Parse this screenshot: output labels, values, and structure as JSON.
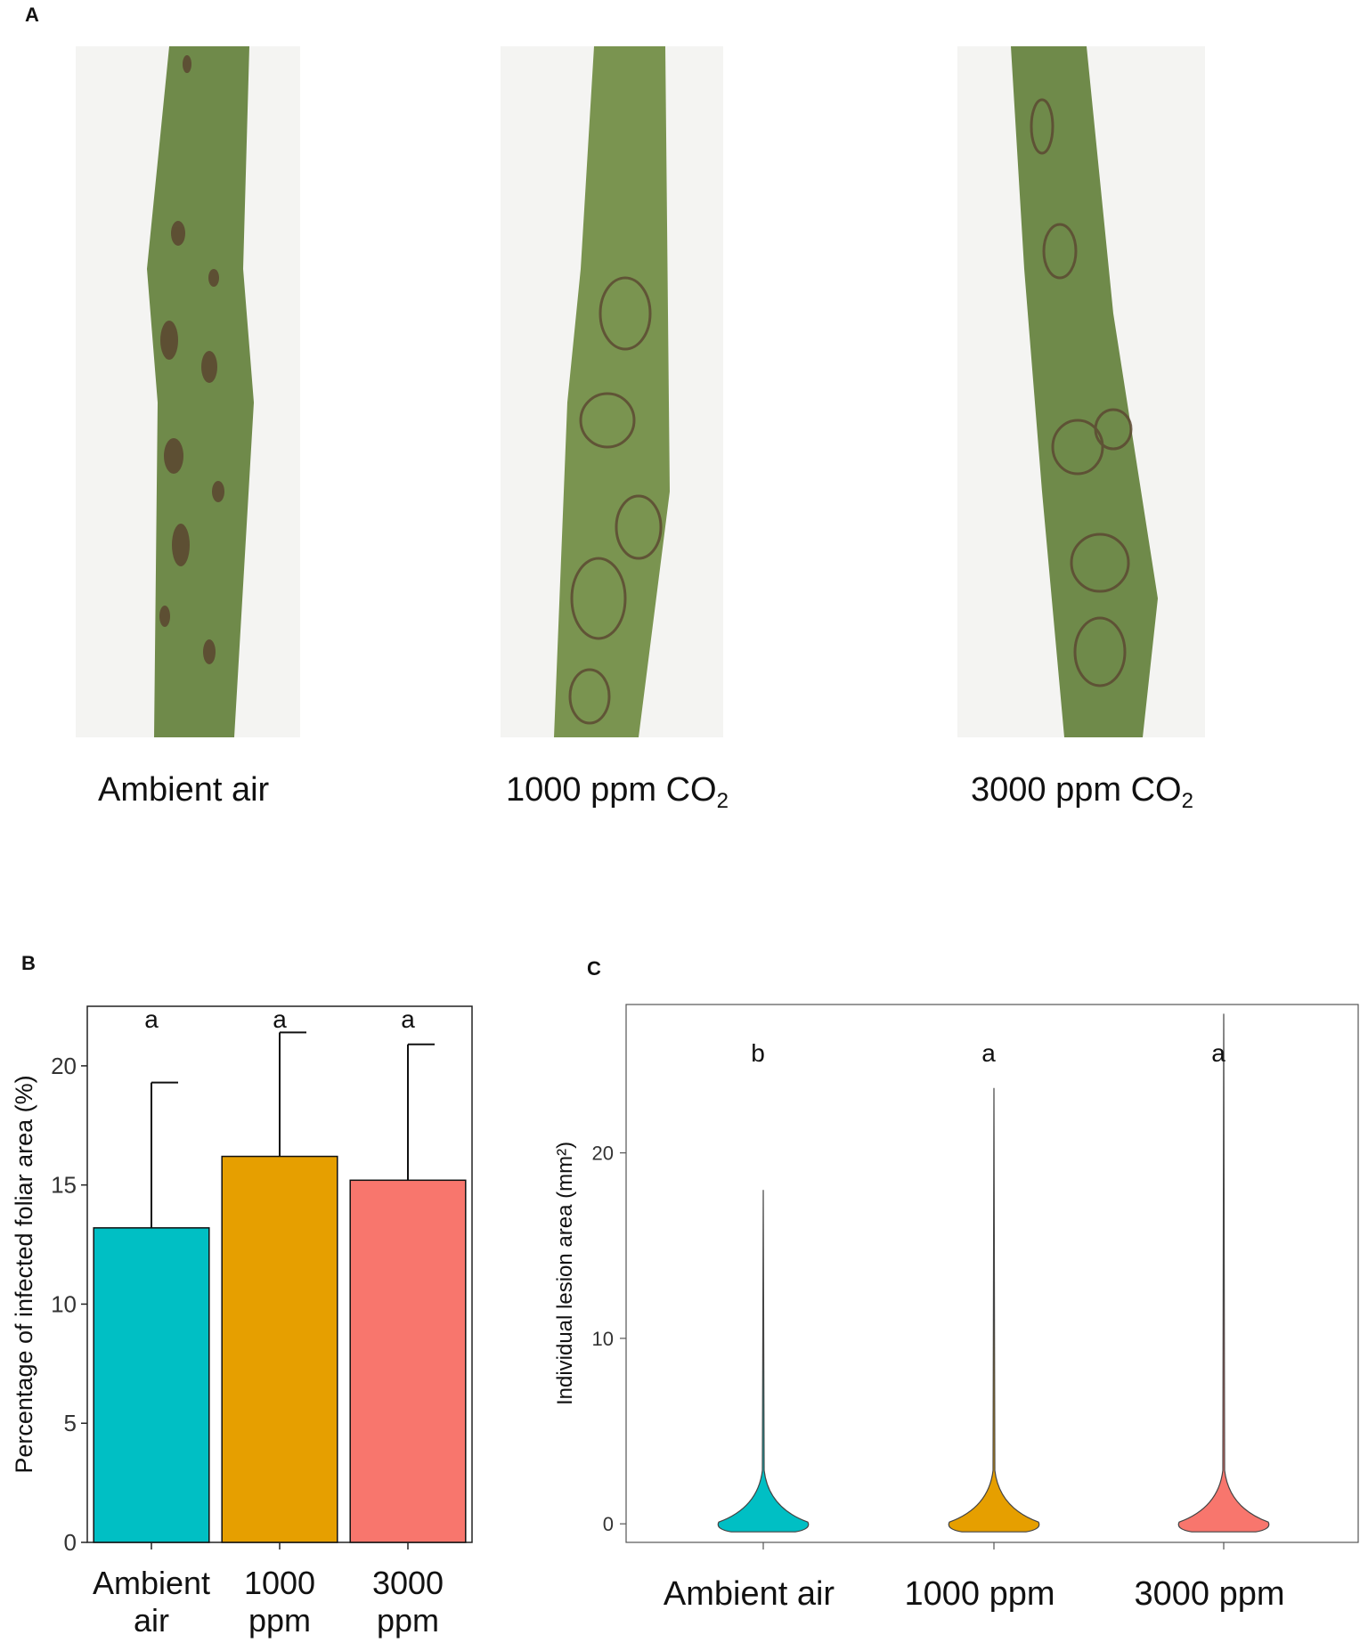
{
  "panel_labels": {
    "a": "A",
    "b": "B",
    "c": "C"
  },
  "panel_a": {
    "leaves": [
      {
        "label": "Ambient air",
        "sub": ""
      },
      {
        "label": "1000 ppm CO",
        "sub": "2"
      },
      {
        "label": "3000 ppm CO",
        "sub": "2"
      }
    ],
    "leaf_color": "#6f8a4a",
    "lesion_color": "#5a4530"
  },
  "chart_data": [
    {
      "type": "bar",
      "categories": [
        "Ambient\nair",
        "1000\nppm",
        "3000\nppm"
      ],
      "values": [
        13.2,
        16.2,
        15.2
      ],
      "error_upper": [
        19.3,
        21.4,
        20.9
      ],
      "significance": [
        "a",
        "a",
        "a"
      ],
      "colors": [
        "#00bfc4",
        "#e69f00",
        "#f8766d"
      ],
      "ylabel": "Percentage of infected foliar area  (%)",
      "xlabel": "",
      "ylim": [
        0,
        22.5
      ],
      "yticks": [
        0,
        5,
        10,
        15,
        20
      ],
      "grid": false
    },
    {
      "type": "violin",
      "categories": [
        "Ambient air",
        "1000 ppm",
        "3000 ppm"
      ],
      "max_values": [
        18.0,
        23.5,
        27.5
      ],
      "median_values": [
        0.3,
        0.3,
        0.3
      ],
      "significance": [
        "b",
        "a",
        "a"
      ],
      "colors": [
        "#00bfc4",
        "#e69f00",
        "#f8766d"
      ],
      "ylabel": "Individual lesion area (mm²)",
      "xlabel": "",
      "ylim": [
        -1,
        28
      ],
      "yticks": [
        0,
        10,
        20
      ],
      "grid": false
    }
  ]
}
